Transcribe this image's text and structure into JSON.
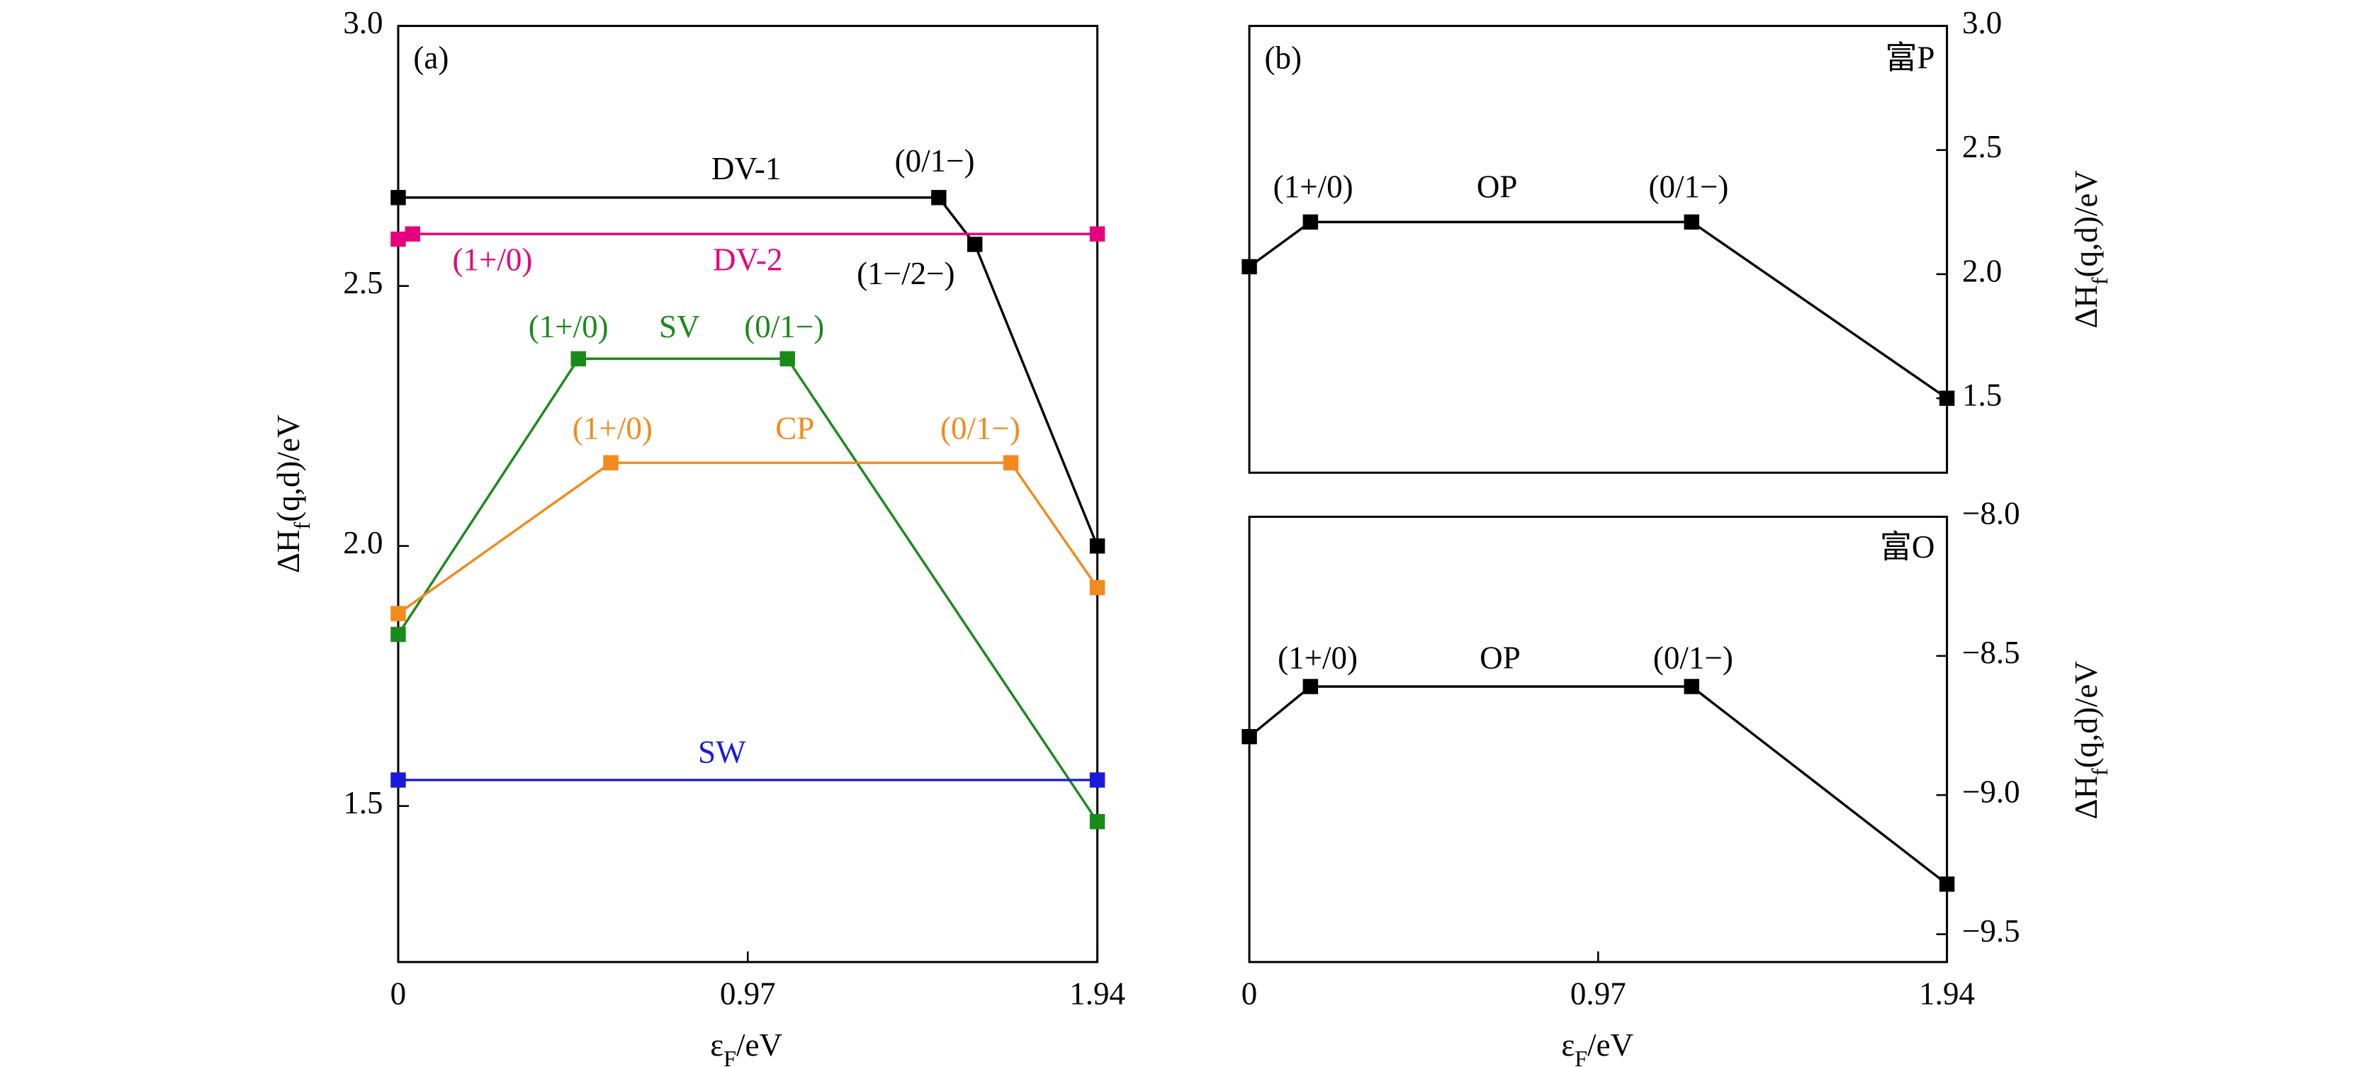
{
  "chart_data": [
    {
      "type": "line",
      "title": "(a)",
      "xlabel": [
        "ε",
        "F",
        "/eV"
      ],
      "ylabel": [
        "ΔH",
        "f",
        "(q,d)/eV"
      ],
      "xlim": [
        0,
        1.94
      ],
      "ylim": [
        1.2,
        3.0
      ],
      "xticks": [
        0,
        0.97,
        1.94
      ],
      "yticks": [
        1.5,
        {
          "value": 2,
          "label": "2.0"
        },
        2.5,
        {
          "value": 3,
          "label": "3.0"
        }
      ],
      "series": [
        {
          "name": "DV-1",
          "color": "#000000",
          "x": [
            0,
            1.5,
            1.6,
            1.94
          ],
          "values": [
            2.67,
            2.67,
            2.58,
            2.0
          ],
          "labels": [
            "(0/1−)",
            "(1−/2−)"
          ]
        },
        {
          "name": "DV-2",
          "color": "#e6007e",
          "x": [
            0,
            0.04,
            1.94
          ],
          "values": [
            2.59,
            2.6,
            2.6
          ],
          "labels": [
            "(1+/0)"
          ]
        },
        {
          "name": "SV",
          "color": "#1a8a1a",
          "x": [
            0,
            0.5,
            1.08,
            1.94
          ],
          "values": [
            1.83,
            2.36,
            2.36,
            1.47
          ],
          "labels": [
            "(1+/0)",
            "(0/1−)"
          ]
        },
        {
          "name": "CP",
          "color": "#f28a1c",
          "x": [
            0,
            0.59,
            1.7,
            1.94
          ],
          "values": [
            1.87,
            2.16,
            2.16,
            1.92
          ],
          "labels": [
            "(1+/0)",
            "(0/1−)"
          ]
        },
        {
          "name": "SW",
          "color": "#1a1adc",
          "x": [
            0,
            1.94
          ],
          "values": [
            1.55,
            1.55
          ],
          "labels": []
        }
      ]
    },
    {
      "type": "line",
      "title": "(b)",
      "subtitle": "富P",
      "ylabel": [
        "ΔH",
        "f",
        "(q,d)/eV"
      ],
      "xlim": [
        0,
        1.94
      ],
      "ylim": [
        1.2,
        3.0
      ],
      "yticks": [
        1.5,
        {
          "value": 2,
          "label": "2.0"
        },
        2.5,
        {
          "value": 3,
          "label": "3.0"
        }
      ],
      "series": [
        {
          "name": "OP",
          "color": "#000000",
          "x": [
            0,
            0.17,
            1.23,
            1.94
          ],
          "values": [
            2.03,
            2.21,
            2.21,
            1.5
          ],
          "labels": [
            "(1+/0)",
            "(0/1−)"
          ]
        }
      ]
    },
    {
      "type": "line",
      "subtitle": "富O",
      "xlabel": [
        "ε",
        "F",
        "/eV"
      ],
      "ylabel": [
        "ΔH",
        "f",
        "(q,d)/eV"
      ],
      "xlim": [
        0,
        1.94
      ],
      "ylim": [
        -9.6,
        -8.0
      ],
      "xticks": [
        0,
        0.97,
        1.94
      ],
      "yticks": [
        {
          "value": -9.5,
          "label": "−9.5"
        },
        {
          "value": -9,
          "label": "−9.0"
        },
        {
          "value": -8.5,
          "label": "−8.5"
        },
        {
          "value": -8,
          "label": "−8.0"
        }
      ],
      "series": [
        {
          "name": "OP",
          "color": "#000000",
          "x": [
            0,
            0.17,
            1.23,
            1.94
          ],
          "values": [
            -8.79,
            -8.61,
            -8.61,
            -9.32
          ],
          "labels": [
            "(1+/0)",
            "(0/1−)"
          ]
        }
      ]
    }
  ]
}
